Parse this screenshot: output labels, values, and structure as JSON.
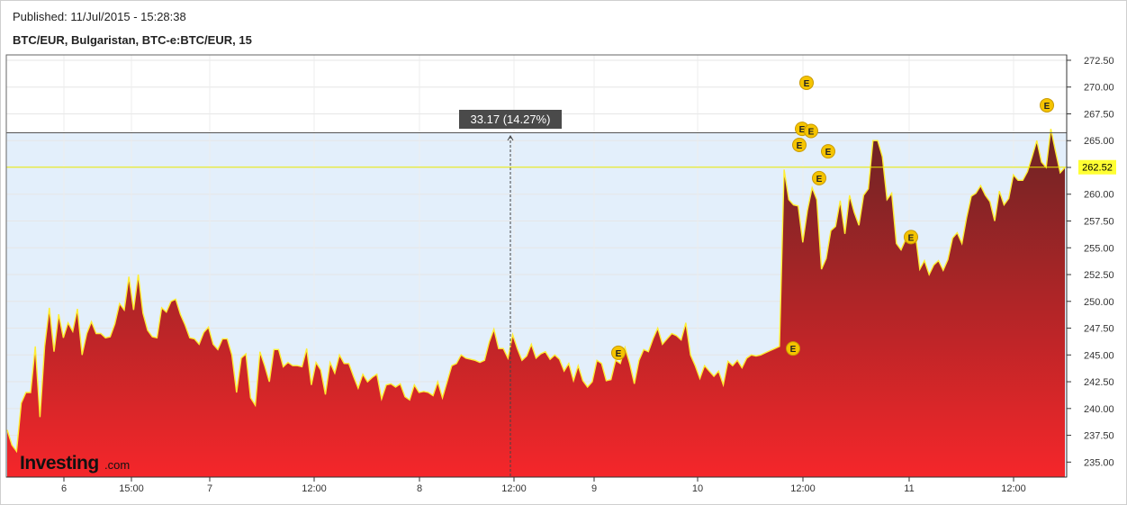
{
  "header": {
    "published": "Published: 11/Jul/2015 - 15:28:38",
    "instrument": "BTC/EUR, Bulgaristan, BTC-e:BTC/EUR, 15"
  },
  "brand": {
    "name": "Investing",
    "suffix": ".com"
  },
  "colors": {
    "area_top": "#6b2424",
    "area_bottom": "#f5262a",
    "line": "#ffee33",
    "measure_band": "#e3effb",
    "price_tag": "#ffff33",
    "marker": "#f5c400",
    "measure_label_bg": "#4a4a4a"
  },
  "chart_data": {
    "type": "area",
    "title": "BTC/EUR, Bulgaristan, BTC-e:BTC/EUR, 15",
    "x_tick_labels": [
      "6",
      "15:00",
      "7",
      "12:00",
      "8",
      "12:00",
      "9",
      "10",
      "12:00",
      "11",
      "12:00"
    ],
    "y_tick_labels": [
      "235.00",
      "237.50",
      "240.00",
      "242.50",
      "245.00",
      "247.50",
      "250.00",
      "252.50",
      "255.00",
      "257.50",
      "260.00",
      "262.50",
      "265.00",
      "267.50",
      "270.00",
      "272.50"
    ],
    "ylim": [
      233.6,
      273.0
    ],
    "grid": true,
    "last_price": 262.52,
    "last_price_label": "262.52",
    "measurement": {
      "label": "33.17 (14.27%)",
      "from": 232.56,
      "to": 265.73
    },
    "event_markers": [
      {
        "label": "E",
        "time": "9 ~06:00",
        "y": 245.2
      },
      {
        "label": "E",
        "time": "10 ~11:30",
        "y": 245.6
      },
      {
        "label": "E",
        "time": "10 ~11:45",
        "y": 264.6
      },
      {
        "label": "E",
        "time": "10 ~11:50",
        "y": 266.1
      },
      {
        "label": "E",
        "time": "10 ~12:00",
        "y": 270.4
      },
      {
        "label": "E",
        "time": "10 ~12:10",
        "y": 265.9
      },
      {
        "label": "E",
        "time": "10 ~14:00",
        "y": 261.5
      },
      {
        "label": "E",
        "time": "10 ~15:00",
        "y": 264.0
      },
      {
        "label": "E",
        "time": "11 ~00:00",
        "y": 256.0
      },
      {
        "label": "E",
        "time": "11 ~12:45",
        "y": 268.3
      }
    ],
    "series": [
      {
        "values": [
          238.0,
          236.6,
          236.0,
          240.5,
          241.5,
          241.5,
          245.8,
          239.2,
          245.8,
          249.4,
          245.3,
          248.8,
          246.6,
          248.0,
          247.2,
          249.3,
          245.0,
          247.0,
          248.1,
          247.0,
          247.0,
          246.6,
          246.7,
          247.9,
          249.8,
          249.2,
          252.3,
          249.2,
          252.5,
          248.9,
          247.3,
          246.7,
          246.6,
          249.4,
          249.0,
          250.0,
          250.2,
          248.8,
          247.8,
          246.6,
          246.5,
          246.0,
          247.1,
          247.6,
          246.0,
          245.5,
          246.5,
          246.5,
          245.0,
          241.5,
          244.7,
          245.1,
          241.0,
          240.3,
          245.3,
          244.0,
          242.5,
          245.5,
          245.5,
          243.9,
          244.3,
          244.0,
          244.0,
          243.9,
          245.6,
          242.2,
          244.3,
          243.6,
          241.3,
          244.3,
          243.3,
          245.0,
          244.2,
          244.2,
          243.0,
          241.9,
          243.2,
          242.5,
          242.9,
          243.2,
          240.9,
          242.2,
          242.3,
          242.0,
          242.3,
          241.1,
          240.8,
          242.2,
          241.5,
          241.6,
          241.5,
          241.2,
          242.5,
          241.0,
          242.5,
          244.0,
          244.2,
          245.0,
          244.7,
          244.6,
          244.5,
          244.3,
          244.5,
          246.2,
          247.4,
          245.6,
          245.6,
          244.7,
          246.9,
          245.6,
          244.5,
          244.9,
          246.0,
          244.7,
          245.1,
          245.3,
          244.6,
          245.0,
          244.6,
          243.5,
          244.2,
          242.6,
          244.0,
          242.6,
          242.0,
          242.5,
          244.5,
          244.2,
          242.6,
          242.7,
          244.5,
          244.2,
          245.7,
          244.2,
          242.3,
          244.5,
          245.5,
          245.3,
          246.5,
          247.5,
          246.0,
          246.5,
          247.0,
          246.8,
          246.4,
          248.0,
          245.0,
          244.0,
          242.8,
          244.0,
          243.5,
          243.0,
          243.5,
          242.2,
          244.4,
          244.0,
          244.5,
          243.8,
          244.7,
          245.0,
          244.9,
          245.0,
          245.2,
          245.4,
          245.6,
          245.8,
          262.3,
          259.5,
          259.0,
          258.9,
          255.5,
          258.5,
          260.6,
          259.5,
          253.0,
          254.0,
          256.6,
          257.0,
          259.4,
          256.3,
          259.9,
          258.3,
          257.1,
          259.9,
          260.5,
          265.0,
          265.0,
          263.5,
          259.5,
          260.1,
          255.4,
          254.8,
          255.8,
          256.1,
          256.5,
          253.0,
          253.8,
          252.5,
          253.4,
          253.8,
          252.9,
          253.9,
          255.9,
          256.4,
          255.4,
          257.8,
          259.8,
          260.1,
          260.8,
          259.9,
          259.3,
          257.5,
          260.3,
          259.0,
          259.6,
          261.8,
          261.3,
          261.3,
          262.1,
          263.5,
          265.0,
          263.0,
          262.5,
          266.1,
          264.0,
          262.0,
          262.5
        ]
      }
    ]
  }
}
